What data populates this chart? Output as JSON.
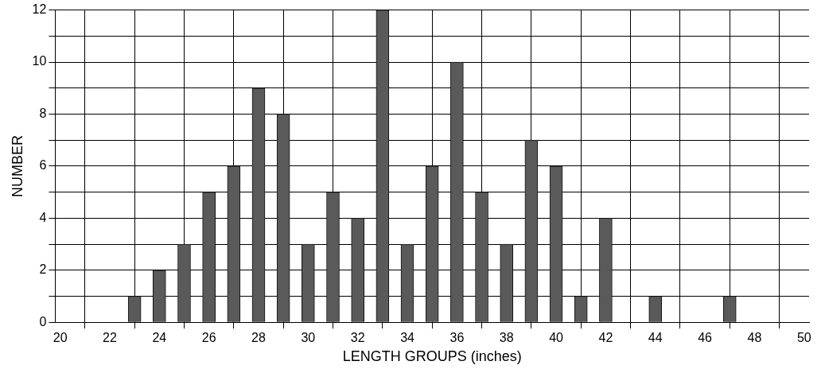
{
  "chart_data": {
    "type": "bar",
    "xlabel": "LENGTH GROUPS (inches)",
    "ylabel": "NUMBER",
    "x": [
      23,
      24,
      25,
      26,
      27,
      28,
      29,
      30,
      31,
      32,
      33,
      34,
      35,
      36,
      37,
      38,
      39,
      40,
      41,
      42,
      44,
      47
    ],
    "values": [
      1,
      2,
      3,
      5,
      6,
      9,
      8,
      3,
      5,
      4,
      12,
      3,
      6,
      10,
      5,
      3,
      7,
      6,
      1,
      4,
      1,
      1
    ],
    "color": "#5a5a5a",
    "xlim": [
      19.8,
      50.2
    ],
    "xticks": [
      20,
      22,
      24,
      26,
      28,
      30,
      32,
      34,
      36,
      38,
      40,
      42,
      44,
      46,
      48,
      50
    ],
    "ylim": [
      0,
      12
    ],
    "yticks": [
      0,
      {
        "value": 1,
        "label": null
      },
      2,
      {
        "value": 3,
        "label": null
      },
      4,
      {
        "value": 5,
        "label": null
      },
      6,
      {
        "value": 7,
        "label": null
      },
      8,
      {
        "value": 9,
        "label": null
      },
      10,
      {
        "value": 11,
        "label": null
      },
      12
    ],
    "grid": true
  }
}
